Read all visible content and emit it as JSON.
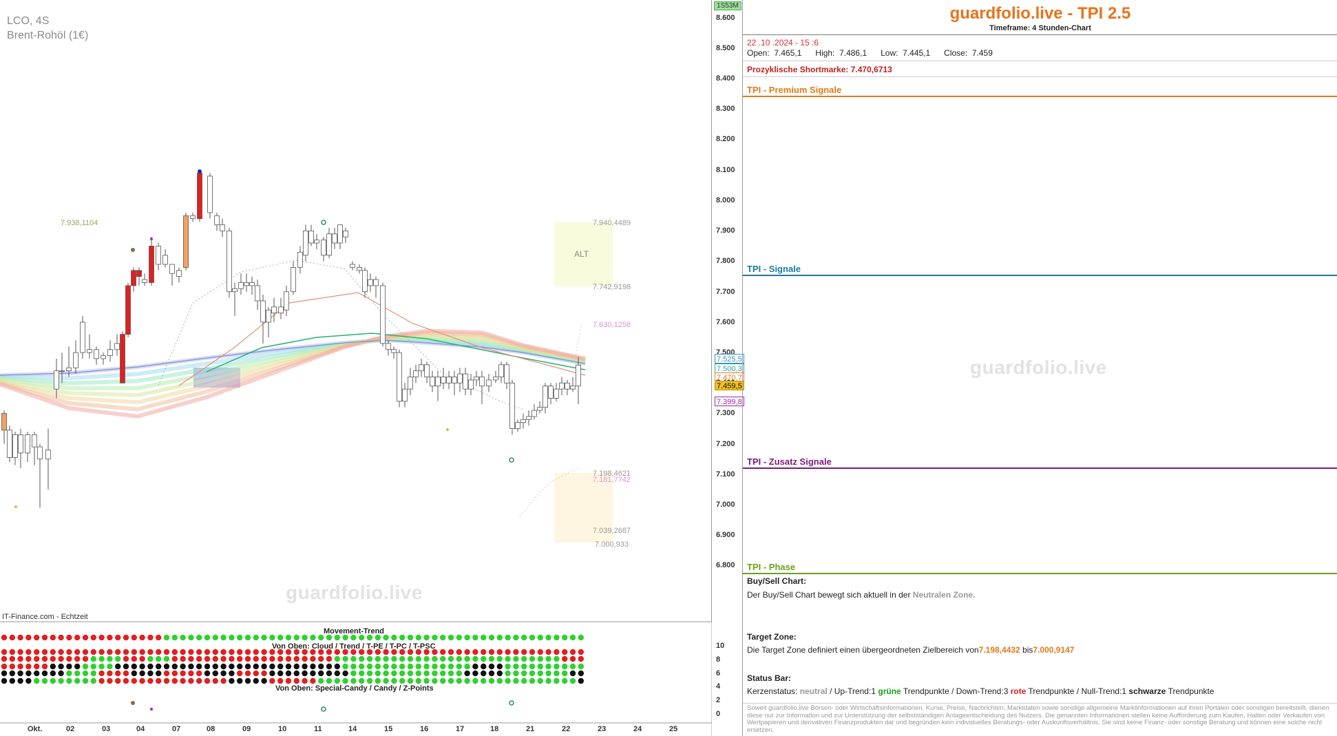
{
  "symbol": {
    "name": "LCO, 4S",
    "desc": "Brent-Rohöl (1€)"
  },
  "source": "IT-Finance.com - Echtzeit",
  "watermark": "guardfolio.live",
  "period_tag": "1S53M",
  "price_axis": [
    "8.600",
    "8.500",
    "8.400",
    "8.300",
    "8.200",
    "8.100",
    "8.000",
    "7.900",
    "7.800",
    "7.700",
    "7.600",
    "7.500",
    "7.400",
    "7.300",
    "7.200",
    "7.100",
    "7.000",
    "6.900",
    "6.800"
  ],
  "price_tags": [
    {
      "label": "7.525,5",
      "color": "#3a8fd0"
    },
    {
      "label": "7.500,3",
      "color": "#2aa7a0"
    },
    {
      "label": "7.470,7",
      "color": "#e07a2a"
    },
    {
      "label": "7.459,5",
      "color": "#111111"
    },
    {
      "label": "7.399,8",
      "color": "#9a2aa0"
    }
  ],
  "date_axis": [
    "Okt.",
    "02",
    "03",
    "04",
    "07",
    "08",
    "09",
    "10",
    "11",
    "14",
    "15",
    "16",
    "17",
    "18",
    "21",
    "22",
    "23",
    "24",
    "25"
  ],
  "zone_labels": {
    "left": "7.938,1104",
    "alt": "ALT",
    "z1": "7.940,4489",
    "z2": "7.742,9198",
    "z3": "7.630,1258",
    "z4": "7.198,4621",
    "z5": "7.181,7742",
    "z6": "7.039,2687",
    "z7": "7.000,933"
  },
  "indicator": {
    "title_top": "Movement-Trend",
    "title_mid": "Von Oben: Cloud / Trend / T-PE / T-PC / T-PSC",
    "title_bot": "Von Oben: Special-Candy / Candy / Z-Points",
    "axis": [
      "10",
      "8",
      "6",
      "4",
      "2",
      "0"
    ]
  },
  "panel": {
    "title": "guardfolio.live - TPI 2.5",
    "timeframe": "Timeframe: 4 Stunden-Chart",
    "datetime": "22 .10 .2024  - 15 :6",
    "ohlc": "Open:  7.465,1      High:  7.486,1      Low:  7.445,1      Close:  7.459",
    "shortmark_label": "Prozyklische Shortmarke:",
    "shortmark_value": "7.470,6713",
    "sections": {
      "premium": "TPI - Premium Signale",
      "signale": "TPI - Signale",
      "zusatz": "TPI - Zusatz Signale",
      "phase": "TPI - Phase"
    },
    "buy_sell_title": "Buy/Sell Chart:",
    "buy_sell_text": "Der Buy/Sell Chart bewegt sich aktuell in der",
    "buy_sell_zone": "Neutralen Zone.",
    "target_title": "Target Zone:",
    "target_text": "Die Target Zone definiert einen übergeordneten Zielbereich von",
    "target_from": "7.198,4432",
    "target_bis": "bis",
    "target_to": "7.000,9147",
    "status_title": "Status Bar:",
    "status": {
      "k_label": "Kerzenstatus:",
      "k_val": "neutral",
      "up_label": "/ Up-Trend:",
      "up_n": "1",
      "up_word": "grüne",
      "tp1": "Trendpunkte",
      "down_label": "/ Down-Trend:",
      "down_n": "3",
      "down_word": "rote",
      "tp2": "Trendpunkte",
      "null_label": "/ Null-Trend:",
      "null_n": "1",
      "null_word": "schwarze",
      "tp3": "Trendpunkte"
    },
    "disclaimer": "Soweit guardfolio.live Börsen- oder Wirtschaftsinformationen, Kurse, Preise, Nachrichten, Marktdaten sowie sonstige allgemeine Marktinformationen auf ihren Portalen oder sonstigen bereitstellt, dienen diese nur zur Information und zur Unterstützung der selbstständigen Anlageentscheidung des Nutzers. Die genannten Informationen stellen keine Aufforderung zum Kaufen, Halten oder Verkaufen von Wertpapieren und derivativen Finanzprodukten dar und begründen kein individuelles Beratungs- oder Auskunftsverhältnis. Sie sind keine Finanz- oder sonstige Beratung und können eine solche nicht ersetzen."
  },
  "colors": {
    "accent": "#e9721a",
    "premium": "#e07a1a",
    "signale": "#1a7aa0",
    "zusatz": "#7a1a7a",
    "phase": "#6aa01a",
    "bull": "#ffffff",
    "bear": "#e02020"
  }
}
